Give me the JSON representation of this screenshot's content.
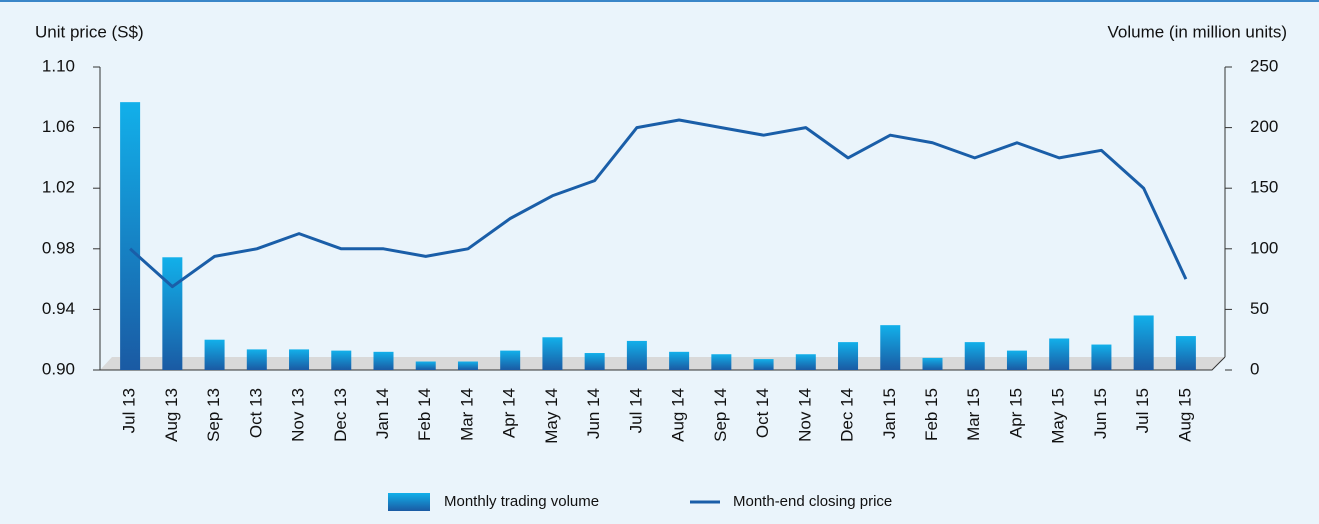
{
  "chart_data": {
    "type": "combo",
    "categories": [
      "Jul 13",
      "Aug 13",
      "Sep 13",
      "Oct 13",
      "Nov 13",
      "Dec 13",
      "Jan 14",
      "Feb 14",
      "Mar 14",
      "Apr 14",
      "May 14",
      "Jun 14",
      "Jul 14",
      "Aug 14",
      "Sep 14",
      "Oct 14",
      "Nov 14",
      "Dec 14",
      "Jan 15",
      "Feb 15",
      "Mar 15",
      "Apr 15",
      "May 15",
      "Jun 15",
      "Jul 15",
      "Aug 15"
    ],
    "y_label": "Unit price (S$)",
    "y2_label": "Volume (in million units)",
    "ylim": [
      0.9,
      1.1
    ],
    "yticks": [
      {
        "value": 0.9,
        "label": "0.90"
      },
      0.94,
      0.98,
      1.02,
      1.06,
      {
        "value": 1.1,
        "label": "1.10"
      }
    ],
    "y2lim": [
      0,
      250
    ],
    "y2ticks": [
      0,
      50,
      100,
      150,
      200,
      250
    ],
    "series": [
      {
        "name": "Monthly trading volume",
        "type": "bar",
        "axis": "y2",
        "color": "#1a8fd6",
        "values": [
          221,
          93,
          25,
          17,
          17,
          16,
          15,
          7,
          7,
          16,
          27,
          14,
          24,
          15,
          13,
          9,
          13,
          23,
          37,
          10,
          23,
          16,
          26,
          21,
          45,
          28
        ]
      },
      {
        "name": "Month-end closing price",
        "type": "line",
        "axis": "y",
        "color": "#1a5ea8",
        "values": [
          0.98,
          0.955,
          0.975,
          0.98,
          0.99,
          0.98,
          0.98,
          0.975,
          0.98,
          1.0,
          1.015,
          1.025,
          1.06,
          1.065,
          1.06,
          1.055,
          1.06,
          1.04,
          1.055,
          1.05,
          1.04,
          1.05,
          1.04,
          1.045,
          1.02,
          0.96
        ]
      }
    ]
  }
}
